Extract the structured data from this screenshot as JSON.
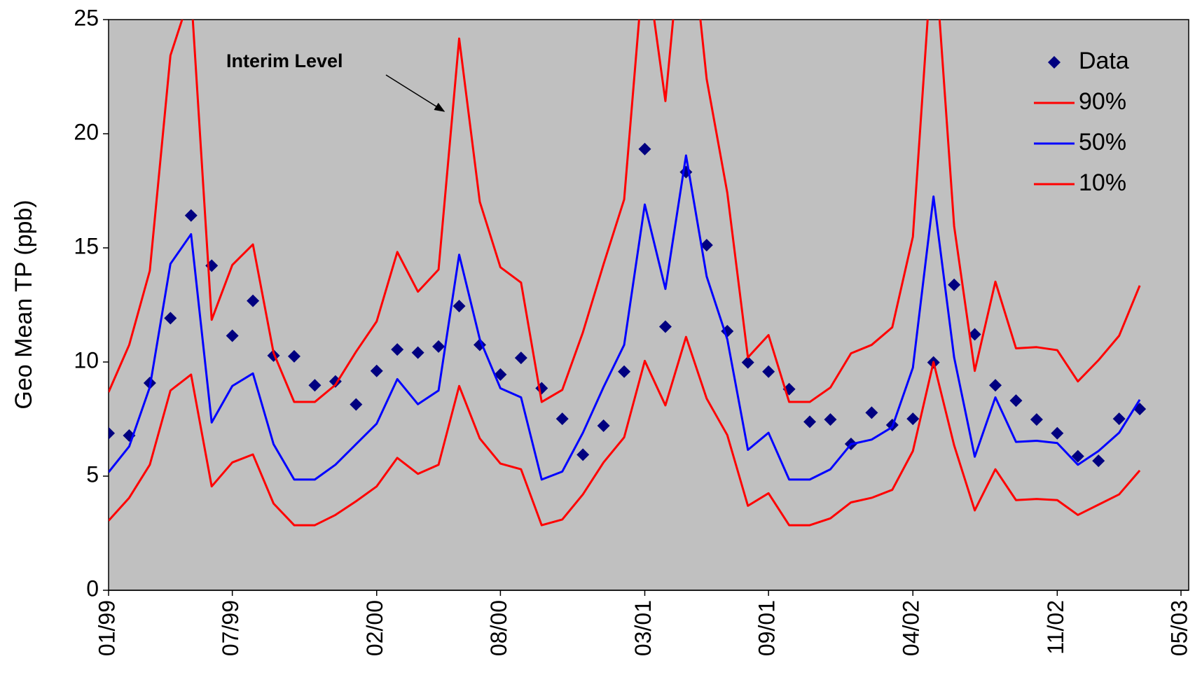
{
  "chart_data": {
    "type": "line",
    "y_label": "Geo Mean TP (ppb)",
    "annotation": "Interim Level",
    "x": [
      "01/99",
      "02/99",
      "03/99",
      "04/99",
      "05/99",
      "06/99",
      "07/99",
      "08/99",
      "09/99",
      "10/99",
      "11/99",
      "12/99",
      "01/00",
      "02/00",
      "03/00",
      "04/00",
      "05/00",
      "06/00",
      "07/00",
      "08/00",
      "09/00",
      "10/00",
      "11/00",
      "12/00",
      "01/01",
      "02/01",
      "03/01",
      "04/01",
      "05/01",
      "06/01",
      "07/01",
      "08/01",
      "09/01",
      "10/01",
      "11/01",
      "12/01",
      "01/02",
      "02/02",
      "03/02",
      "04/02",
      "05/02",
      "06/02",
      "07/02",
      "08/02",
      "09/02",
      "10/02",
      "11/02",
      "12/02",
      "01/03",
      "02/03",
      "03/03"
    ],
    "series": [
      {
        "name": "Data",
        "color": "#000080",
        "style": "markers",
        "values": [
          6.88,
          6.78,
          9.08,
          11.92,
          16.42,
          14.22,
          11.15,
          12.68,
          10.28,
          10.25,
          8.98,
          9.15,
          8.14,
          9.61,
          10.55,
          10.41,
          10.68,
          12.45,
          10.75,
          9.45,
          10.18,
          8.85,
          7.51,
          5.94,
          7.21,
          9.58,
          19.33,
          11.55,
          18.32,
          15.12,
          11.35,
          9.98,
          9.58,
          8.81,
          7.38,
          7.48,
          6.41,
          7.78,
          7.24,
          7.51,
          9.98,
          13.38,
          11.21,
          8.98,
          8.31,
          7.48,
          6.88,
          5.87,
          5.67,
          7.51,
          7.94
        ]
      },
      {
        "name": "90%",
        "color": "#ff0000",
        "style": "line",
        "values": [
          8.68,
          10.75,
          14.0,
          23.43,
          26.2,
          11.85,
          14.25,
          15.15,
          10.4,
          8.25,
          8.25,
          9.0,
          10.45,
          11.78,
          14.82,
          13.08,
          14.05,
          24.17,
          17.02,
          14.15,
          13.48,
          8.25,
          8.78,
          11.3,
          14.28,
          17.12,
          28.0,
          21.43,
          31.0,
          22.4,
          17.42,
          10.2,
          11.18,
          8.25,
          8.25,
          8.88,
          10.38,
          10.75,
          11.52,
          15.49,
          28.8,
          15.95,
          9.61,
          13.52,
          10.6,
          10.65,
          10.52,
          9.15,
          10.08,
          11.15,
          13.35
        ]
      },
      {
        "name": "50%",
        "color": "#0000ff",
        "style": "line",
        "values": [
          5.17,
          6.3,
          8.9,
          14.3,
          15.6,
          7.35,
          8.95,
          9.5,
          6.4,
          4.85,
          4.85,
          5.5,
          6.4,
          7.3,
          9.25,
          8.15,
          8.75,
          14.7,
          11.0,
          8.85,
          8.45,
          4.85,
          5.2,
          6.9,
          8.9,
          10.75,
          16.9,
          13.2,
          19.05,
          13.75,
          11.0,
          6.15,
          6.9,
          4.85,
          4.85,
          5.3,
          6.4,
          6.6,
          7.15,
          9.75,
          17.25,
          10.2,
          5.85,
          8.45,
          6.5,
          6.55,
          6.45,
          5.5,
          6.1,
          6.9,
          8.35
        ]
      },
      {
        "name": "10%",
        "color": "#ff0000",
        "style": "line",
        "values": [
          3.05,
          4.05,
          5.5,
          8.75,
          9.45,
          4.55,
          5.6,
          5.95,
          3.8,
          2.85,
          2.85,
          3.3,
          3.9,
          4.55,
          5.8,
          5.1,
          5.5,
          8.95,
          6.65,
          5.55,
          5.3,
          2.85,
          3.1,
          4.2,
          5.6,
          6.7,
          10.05,
          8.1,
          11.1,
          8.4,
          6.8,
          3.7,
          4.25,
          2.85,
          2.85,
          3.15,
          3.85,
          4.05,
          4.4,
          6.1,
          10.0,
          6.35,
          3.5,
          5.3,
          3.95,
          4.0,
          3.95,
          3.3,
          3.75,
          4.2,
          5.25
        ]
      }
    ],
    "xlim": [
      "01/99",
      "05/03"
    ],
    "xticks": [
      "01/99",
      "07/99",
      "02/00",
      "08/00",
      "03/01",
      "09/01",
      "04/02",
      "11/02",
      "05/03"
    ],
    "ylim": [
      0,
      25
    ],
    "yticks": [
      0,
      5,
      10,
      15,
      20,
      25
    ],
    "grid": false,
    "legend": "upper right",
    "background": "#c0c0c0"
  }
}
